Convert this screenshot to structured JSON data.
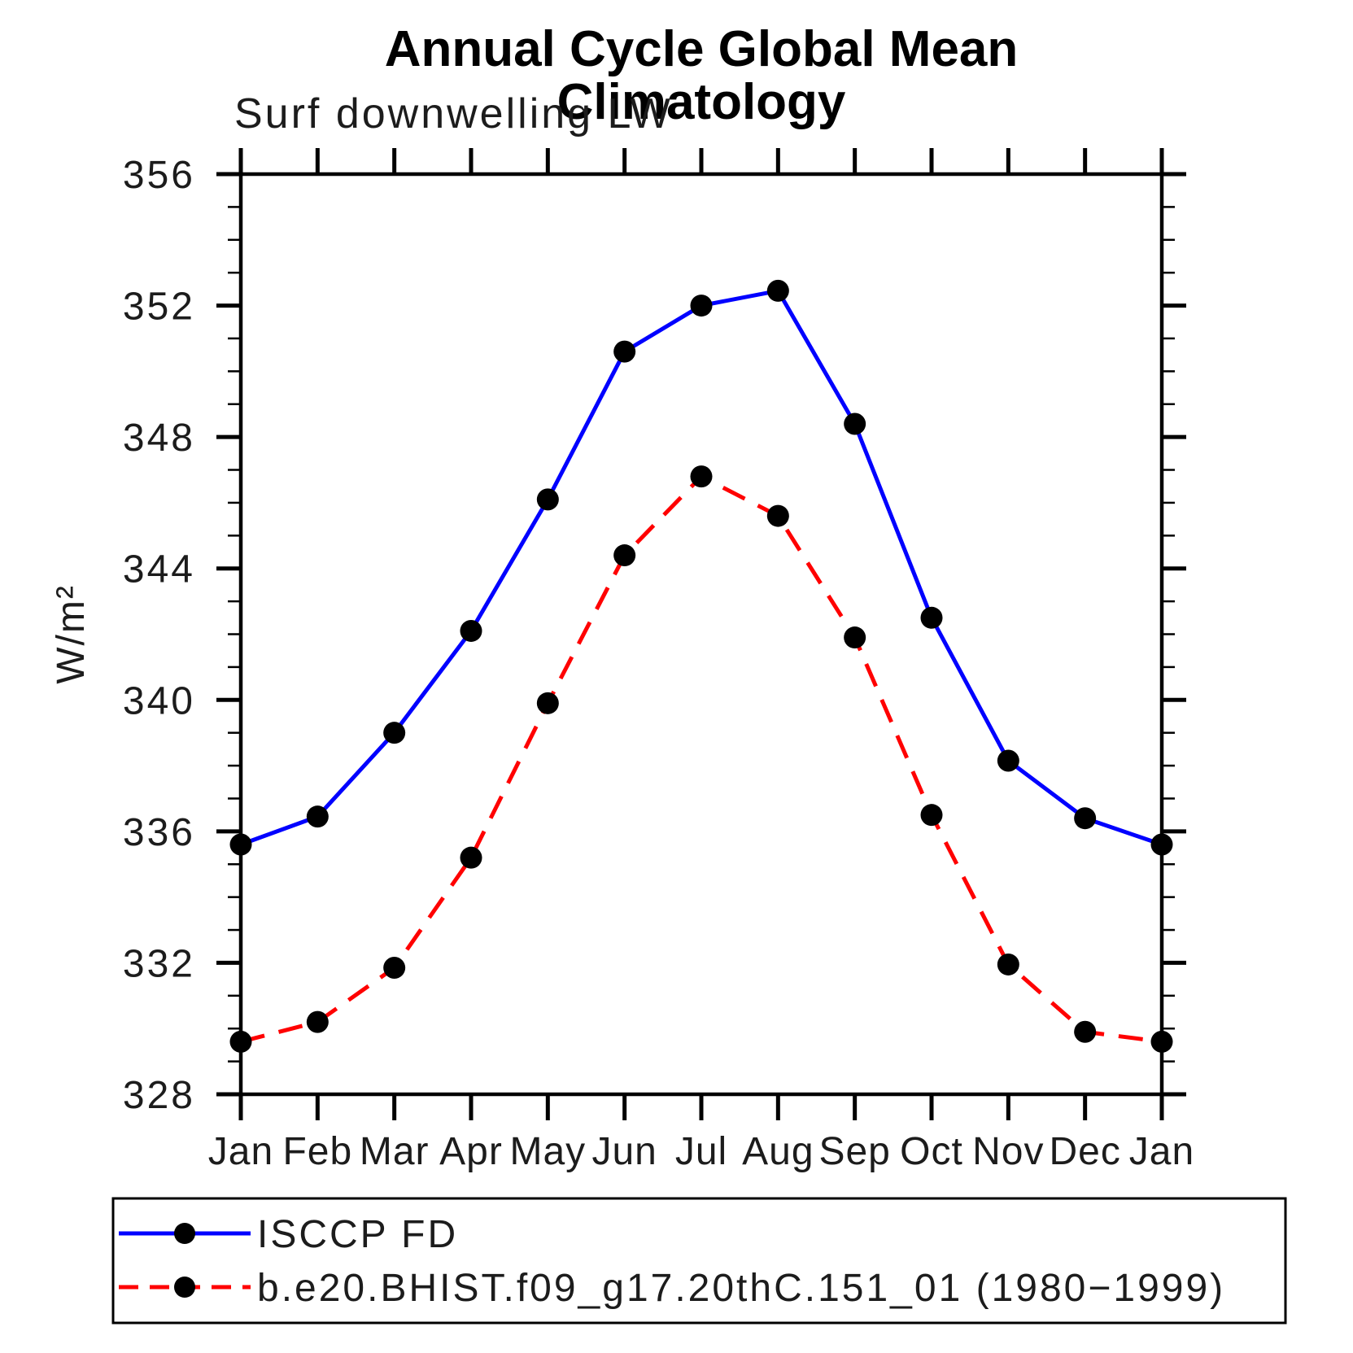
{
  "page": {
    "title": "Annual Cycle Global Mean Climatology",
    "subtitle": "Surf downwelling LW"
  },
  "chart_data": {
    "type": "line",
    "x_categories": [
      "Jan",
      "Feb",
      "Mar",
      "Apr",
      "May",
      "Jun",
      "Jul",
      "Aug",
      "Sep",
      "Oct",
      "Nov",
      "Dec",
      "Jan"
    ],
    "ylabel": "W/m²",
    "ylim": [
      328,
      356
    ],
    "y_major_step": 4,
    "y_minor_step": 1,
    "grid": false,
    "legend_position": "bottom",
    "axis_color": "#000000",
    "marker_color": "#000000",
    "series": [
      {
        "name": "ISCCP FD",
        "color": "#0000ff",
        "style": "solid",
        "marker": "circle",
        "values": [
          335.6,
          336.45,
          339.0,
          342.1,
          346.1,
          350.6,
          352.0,
          352.45,
          348.4,
          342.5,
          338.15,
          336.4,
          335.6
        ]
      },
      {
        "name": "b.e20.BHIST.f09_g17.20thC.151_01 (1980−1999)",
        "color": "#ff0000",
        "style": "dashed",
        "marker": "circle",
        "values": [
          329.6,
          330.2,
          331.85,
          335.2,
          339.9,
          344.4,
          346.8,
          345.6,
          341.9,
          336.5,
          331.95,
          329.9,
          329.6
        ]
      }
    ]
  }
}
